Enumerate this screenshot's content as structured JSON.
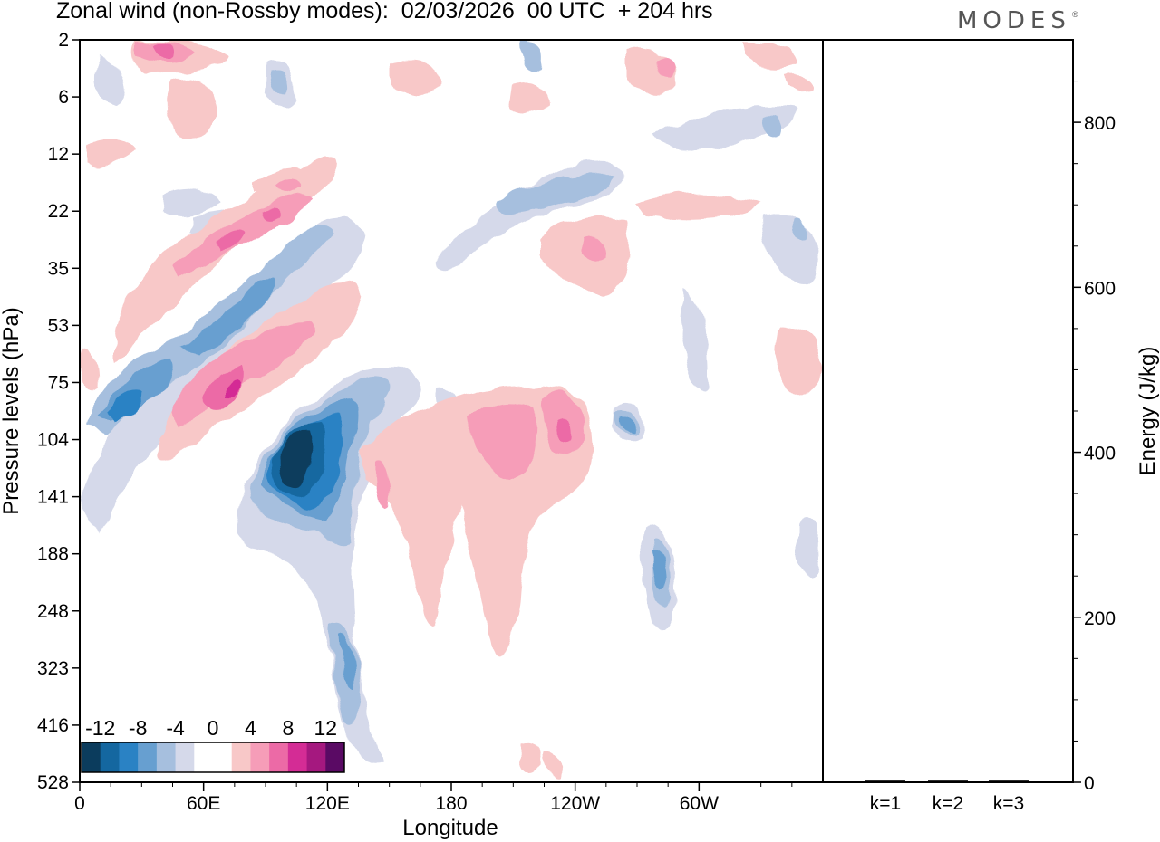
{
  "chart_data": {
    "type": "heatmap",
    "title": "Zonal wind (non-Rossby modes):  02/03/2026  00 UTC  + 204 hrs",
    "brand": "MODES",
    "brand_mark": "®",
    "main_panel": {
      "xlabel": "Longitude",
      "ylabel": "Pressure levels (hPa)",
      "x_ticks": [
        "0",
        "60E",
        "120E",
        "180",
        "120W",
        "60W"
      ],
      "x_tick_values": [
        0,
        60,
        120,
        180,
        240,
        300
      ],
      "xlim": [
        0,
        360
      ],
      "y_ticks": [
        "2",
        "6",
        "12",
        "22",
        "35",
        "53",
        "75",
        "104",
        "141",
        "188",
        "248",
        "323",
        "416",
        "528"
      ],
      "colorbar": {
        "labels": [
          "-12",
          "-8",
          "-4",
          "0",
          "4",
          "8",
          "12"
        ],
        "colors": [
          "#0b3c5d",
          "#1467a0",
          "#2a82c4",
          "#679fd0",
          "#a6bfde",
          "#d5d9ea",
          "#ffffff",
          "#ffffff",
          "#f8c8c8",
          "#f69db8",
          "#ec6aa6",
          "#d42c95",
          "#a5187f",
          "#5a0a64"
        ]
      },
      "features": [
        {
          "name": "dipole-negative-upper",
          "lon": 20,
          "level": "75",
          "value": -8
        },
        {
          "name": "dipole-positive-upper",
          "lon": 75,
          "level": "75",
          "value": 10
        },
        {
          "name": "jet-core-negative",
          "lon": 105,
          "level": "141",
          "value": -14
        },
        {
          "name": "positive-band-stratosphere",
          "lon": 70,
          "level": "22",
          "value": 8
        },
        {
          "name": "positive-region-east",
          "lon": 230,
          "level": "104",
          "value": 8
        },
        {
          "name": "negative-band-east",
          "lon": 230,
          "level": "22",
          "value": -6
        }
      ]
    },
    "energy_panel": {
      "ylabel": "Energy (J/kg)",
      "y_ticks": [
        "0",
        "200",
        "400",
        "600",
        "800"
      ],
      "y_tick_values": [
        0,
        200,
        400,
        600,
        800
      ],
      "ylim": [
        0,
        900
      ],
      "categories": [
        "k=1",
        "k=2",
        "k=3"
      ],
      "values": [
        2,
        2,
        2
      ]
    }
  }
}
